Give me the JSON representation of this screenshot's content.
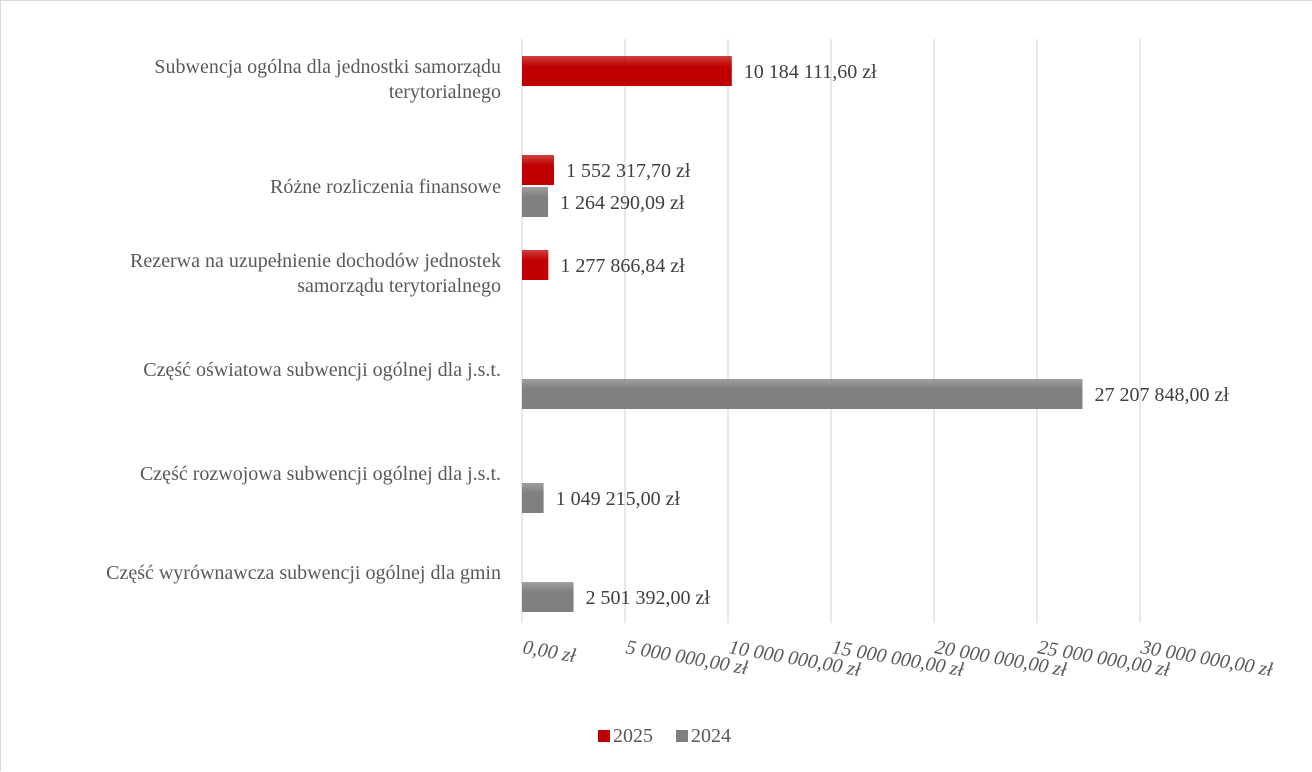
{
  "chart_data": {
    "type": "bar",
    "orientation": "horizontal",
    "categories": [
      "Subwencja ogólna dla jednostki samorządu terytorialnego",
      "Różne rozliczenia finansowe",
      "Rezerwa na uzupełnienie dochodów jednostek samorządu terytorialnego",
      "Część oświatowa subwencji ogólnej dla j.s.t.",
      "Część rozwojowa subwencji ogólnej dla j.s.t.",
      "Część wyrównawcza subwencji ogólnej dla gmin"
    ],
    "category_lines": [
      [
        "Subwencja ogólna dla jednostki samorządu",
        "terytorialnego"
      ],
      [
        "Różne rozliczenia finansowe"
      ],
      [
        "Rezerwa na uzupełnienie dochodów jednostek",
        "samorządu terytorialnego"
      ],
      [
        "Część oświatowa subwencji ogólnej dla j.s.t."
      ],
      [
        "Część rozwojowa subwencji ogólnej dla j.s.t."
      ],
      [
        "Część wyrównawcza subwencji ogólnej dla gmin"
      ]
    ],
    "series": [
      {
        "name": "2025",
        "color": "#c00000",
        "values": [
          10184111.6,
          1552317.7,
          1277866.84,
          null,
          null,
          null
        ],
        "labels": [
          "10 184 111,60 zł",
          "1 552 317,70 zł",
          "1 277 866,84 zł",
          "",
          "",
          ""
        ]
      },
      {
        "name": "2024",
        "color": "#7f7f7f",
        "values": [
          null,
          1264290.09,
          null,
          27207848.0,
          1049215.0,
          2501392.0
        ],
        "labels": [
          "",
          "1 264 290,09 zł",
          "",
          "27 207 848,00 zł",
          "1 049 215,00 zł",
          "2 501 392,00 zł"
        ]
      }
    ],
    "xlim": [
      0,
      30000000
    ],
    "xticks": [
      0,
      5000000,
      10000000,
      15000000,
      20000000,
      25000000,
      30000000
    ],
    "xtick_labels": [
      "0,00 zł",
      "5 000 000,00 zł",
      "10 000 000,00 zł",
      "15 000 000,00 zł",
      "20 000 000,00 zł",
      "25 000 000,00 zł",
      "30 000 000,00 zł"
    ],
    "grid": true,
    "legend_position": "bottom",
    "title": "",
    "xlabel": "",
    "ylabel": ""
  }
}
